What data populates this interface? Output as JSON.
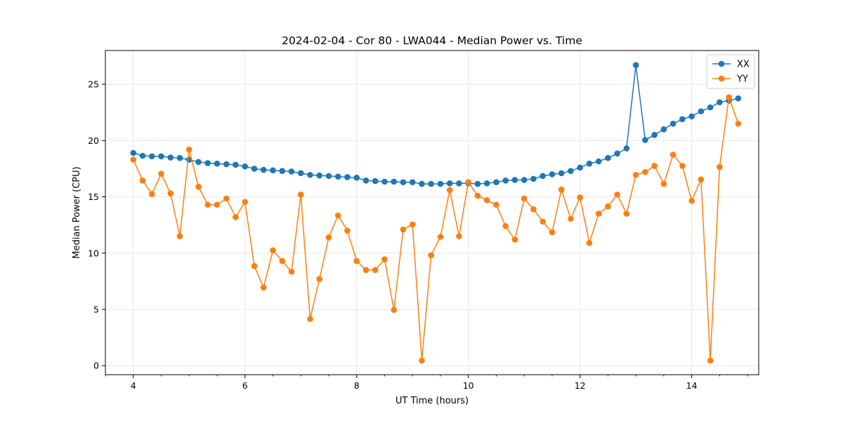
{
  "chart_data": {
    "type": "line",
    "title": "2024-02-04 - Cor 80 - LWA044 - Median Power vs. Time",
    "xlabel": "UT Time (hours)",
    "ylabel": "Median Power (CPU)",
    "xlim": [
      3.5,
      15.2
    ],
    "ylim": [
      -0.8,
      28.0
    ],
    "xticks": [
      4,
      6,
      8,
      10,
      12,
      14
    ],
    "yticks": [
      0,
      5,
      10,
      15,
      20,
      25
    ],
    "x_minor_step": 0.5,
    "grid": true,
    "legend_position": "top-right",
    "series": [
      {
        "name": "XX",
        "color": "#1f77b4",
        "x": [
          4.0,
          4.167,
          4.333,
          4.5,
          4.667,
          4.833,
          5.0,
          5.167,
          5.333,
          5.5,
          5.667,
          5.833,
          6.0,
          6.167,
          6.333,
          6.5,
          6.667,
          6.833,
          7.0,
          7.167,
          7.333,
          7.5,
          7.667,
          7.833,
          8.0,
          8.167,
          8.333,
          8.5,
          8.667,
          8.833,
          9.0,
          9.167,
          9.333,
          9.5,
          9.667,
          9.833,
          10.0,
          10.167,
          10.333,
          10.5,
          10.667,
          10.833,
          11.0,
          11.167,
          11.333,
          11.5,
          11.667,
          11.833,
          12.0,
          12.167,
          12.333,
          12.5,
          12.667,
          12.833,
          13.0,
          13.167,
          13.333,
          13.5,
          13.667,
          13.833,
          14.0,
          14.167,
          14.333,
          14.5,
          14.667,
          14.833
        ],
        "values": [
          18.9,
          18.65,
          18.6,
          18.6,
          18.5,
          18.45,
          18.3,
          18.1,
          18.0,
          17.95,
          17.9,
          17.85,
          17.7,
          17.5,
          17.4,
          17.35,
          17.3,
          17.25,
          17.1,
          16.95,
          16.9,
          16.85,
          16.8,
          16.75,
          16.7,
          16.45,
          16.4,
          16.35,
          16.35,
          16.3,
          16.3,
          16.15,
          16.15,
          16.15,
          16.2,
          16.2,
          16.2,
          16.15,
          16.2,
          16.3,
          16.45,
          16.5,
          16.5,
          16.6,
          16.85,
          17.0,
          17.1,
          17.3,
          17.6,
          17.95,
          18.15,
          18.45,
          18.85,
          19.3,
          26.7,
          20.05,
          20.5,
          21.0,
          21.5,
          21.9,
          22.15,
          22.6,
          22.95,
          23.4,
          23.55,
          23.75
        ]
      },
      {
        "name": "YY",
        "color": "#ff7f0e",
        "x": [
          4.0,
          4.167,
          4.333,
          4.5,
          4.667,
          4.833,
          5.0,
          5.167,
          5.333,
          5.5,
          5.667,
          5.833,
          6.0,
          6.167,
          6.333,
          6.5,
          6.667,
          6.833,
          7.0,
          7.167,
          7.333,
          7.5,
          7.667,
          7.833,
          8.0,
          8.167,
          8.333,
          8.5,
          8.667,
          8.833,
          9.0,
          9.167,
          9.333,
          9.5,
          9.667,
          9.833,
          10.0,
          10.167,
          10.333,
          10.5,
          10.667,
          10.833,
          11.0,
          11.167,
          11.333,
          11.5,
          11.667,
          11.833,
          12.0,
          12.167,
          12.333,
          12.5,
          12.667,
          12.833,
          13.0,
          13.167,
          13.333,
          13.5,
          13.667,
          13.833,
          14.0,
          14.167,
          14.333,
          14.5,
          14.667,
          14.833
        ],
        "values": [
          18.3,
          16.45,
          15.25,
          17.05,
          15.3,
          11.5,
          19.2,
          15.9,
          14.3,
          14.3,
          14.85,
          13.2,
          14.55,
          8.85,
          6.95,
          10.25,
          9.3,
          8.35,
          15.2,
          4.15,
          7.7,
          11.4,
          13.35,
          12.0,
          9.3,
          8.5,
          8.5,
          9.45,
          4.95,
          12.1,
          12.55,
          0.45,
          9.8,
          11.45,
          15.6,
          11.5,
          16.3,
          15.1,
          14.7,
          14.3,
          12.4,
          11.2,
          14.85,
          13.9,
          12.8,
          11.85,
          15.65,
          13.05,
          14.95,
          10.9,
          13.5,
          14.15,
          15.2,
          13.5,
          16.95,
          17.2,
          17.75,
          16.15,
          18.75,
          17.75,
          14.65,
          16.55,
          0.45,
          17.65,
          23.85,
          21.5
        ]
      }
    ]
  }
}
